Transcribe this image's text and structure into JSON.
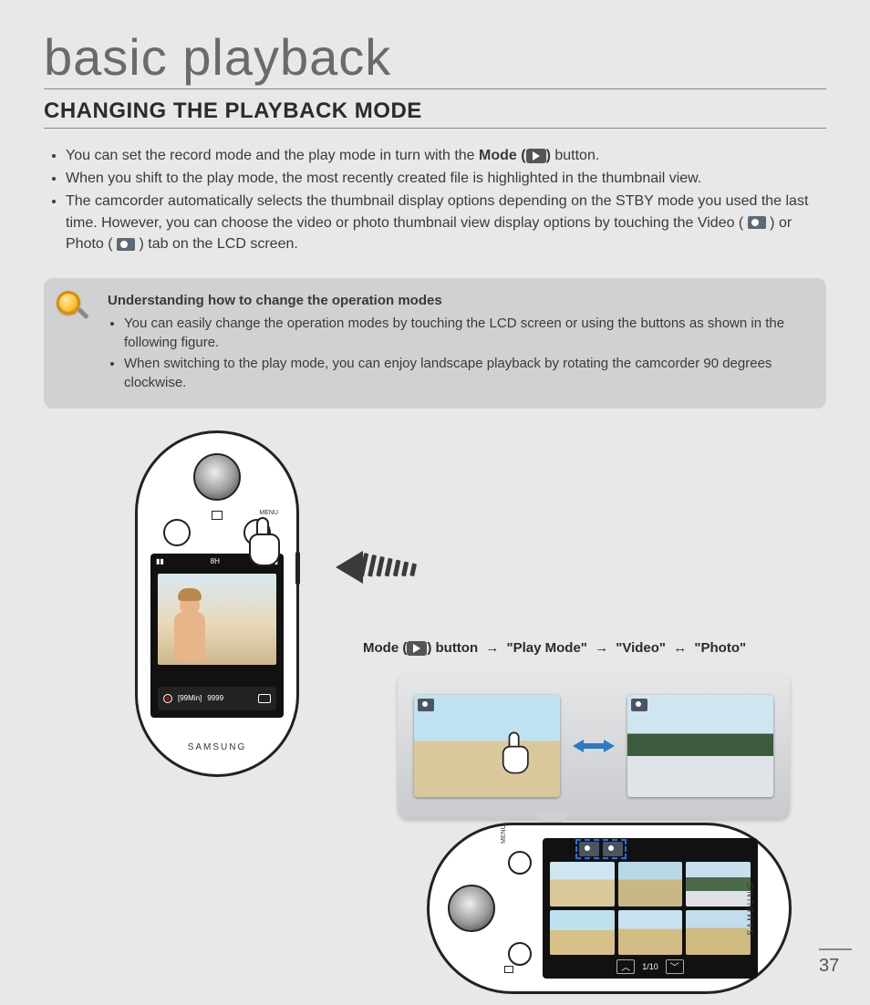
{
  "colors": {
    "page_bg": "#e8e8e8",
    "text": "#3a3a3a",
    "heading": "#2b2b2b",
    "rule": "#888888",
    "callout_bg": "#d0d1d3",
    "swap_arrow": "#2a7bbf",
    "dashed_highlight": "#1a73e8"
  },
  "title": "basic playback",
  "section_heading": "CHANGING THE PLAYBACK MODE",
  "bullets": {
    "b1_pre": "You can set the record mode and the play mode in turn with the ",
    "b1_mode": "Mode (",
    "b1_post": ") ",
    "b1_end": "button.",
    "b2": "When you shift to the play mode, the most recently created file is highlighted in the thumbnail view.",
    "b3a": "The camcorder automatically selects the thumbnail display options depending on the STBY mode you used the last time. However, you can choose the video or photo thumbnail view display options by touching the Video (",
    "b3b": ") or Photo (",
    "b3c": ") tab on the LCD screen."
  },
  "callout": {
    "title": "Understanding how to change the operation modes",
    "c1": "You can easily change the operation modes by touching the LCD screen or using the buttons as shown in the following figure.",
    "c2": "When switching to the play mode, you can enjoy landscape playback by rotating the camcorder 90 degrees clockwise."
  },
  "device": {
    "brand": "SAMSUNG",
    "menu_label": "MENU",
    "status_time": "8H",
    "rec_remaining": "[99Min]",
    "rec_count": "9999",
    "thumb_page": "1/10"
  },
  "flow": {
    "pre": "Mode (",
    "post": ") button",
    "step2": "\"Play Mode\"",
    "step3": "\"Video\"",
    "step4": "\"Photo\""
  },
  "page_number": "37"
}
